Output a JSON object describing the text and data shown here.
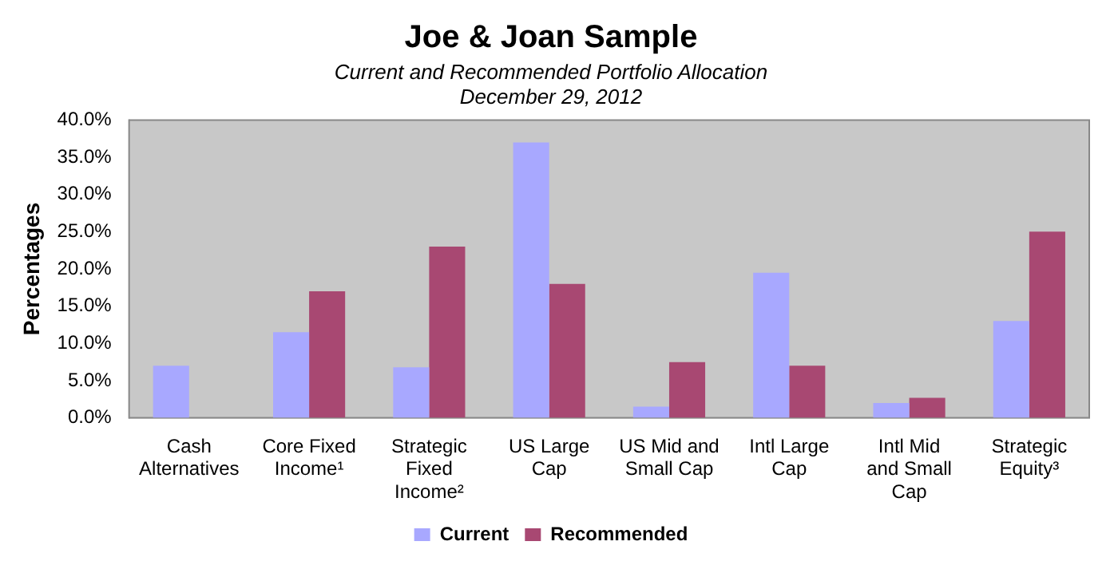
{
  "chart_data": {
    "type": "bar",
    "title": "Joe & Joan Sample",
    "subtitle": "Current and Recommended Portfolio Allocation",
    "annotations": [
      "December 29, 2012"
    ],
    "ylabel": "Percentages",
    "categories": [
      "Cash Alternatives",
      "Core Fixed Income¹",
      "Strategic Fixed Income²",
      "US Large Cap",
      "US Mid and Small Cap",
      "Intl Large Cap",
      "Intl Mid and Small Cap",
      "Strategic Equity³"
    ],
    "series": [
      {
        "name": "Current",
        "color": "#a8a8ff",
        "values": [
          7,
          11.5,
          6.8,
          37,
          1.5,
          19.5,
          2,
          13
        ]
      },
      {
        "name": "Recommended",
        "color": "#a84872",
        "values": [
          0,
          17,
          23,
          18,
          7.5,
          7,
          2.7,
          25
        ]
      }
    ],
    "ylim": [
      0,
      40
    ],
    "yticks": [
      {
        "value": 0,
        "label": "0.0%"
      },
      {
        "value": 5,
        "label": "5.0%"
      },
      {
        "value": 10,
        "label": "10.0%"
      },
      {
        "value": 15,
        "label": "15.0%"
      },
      {
        "value": 20,
        "label": "20.0%"
      },
      {
        "value": 25,
        "label": "25.0%"
      },
      {
        "value": 30,
        "label": "30.0%"
      },
      {
        "value": 35,
        "label": "35.0%"
      },
      {
        "value": 40,
        "label": "40.0%"
      }
    ],
    "grid": false,
    "legend": "bottom"
  }
}
